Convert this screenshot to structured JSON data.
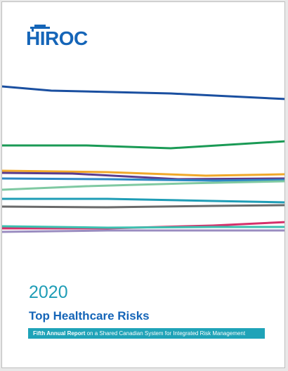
{
  "logo": {
    "text": "HIROC",
    "color": "#1565b8",
    "icon": "hiroc-roof-icon"
  },
  "cover": {
    "year": "2020",
    "title": "Top Healthcare Risks",
    "subtitle_bold": "Fifth Annual Report",
    "subtitle_rest": " on a Shared Canadian System for Integrated Risk Management"
  },
  "colors": {
    "year": "#1f9db6",
    "title": "#1565b8",
    "banner_bg": "#1fa3b8",
    "lines": [
      "#1a4fa0",
      "#1a9a55",
      "#f0a82a",
      "#5b3c8e",
      "#2c88c5",
      "#7fc9a2",
      "#1f9db6",
      "#6a6a6a",
      "#d6306a",
      "#3cc0b0",
      "#9a8cc0"
    ]
  }
}
